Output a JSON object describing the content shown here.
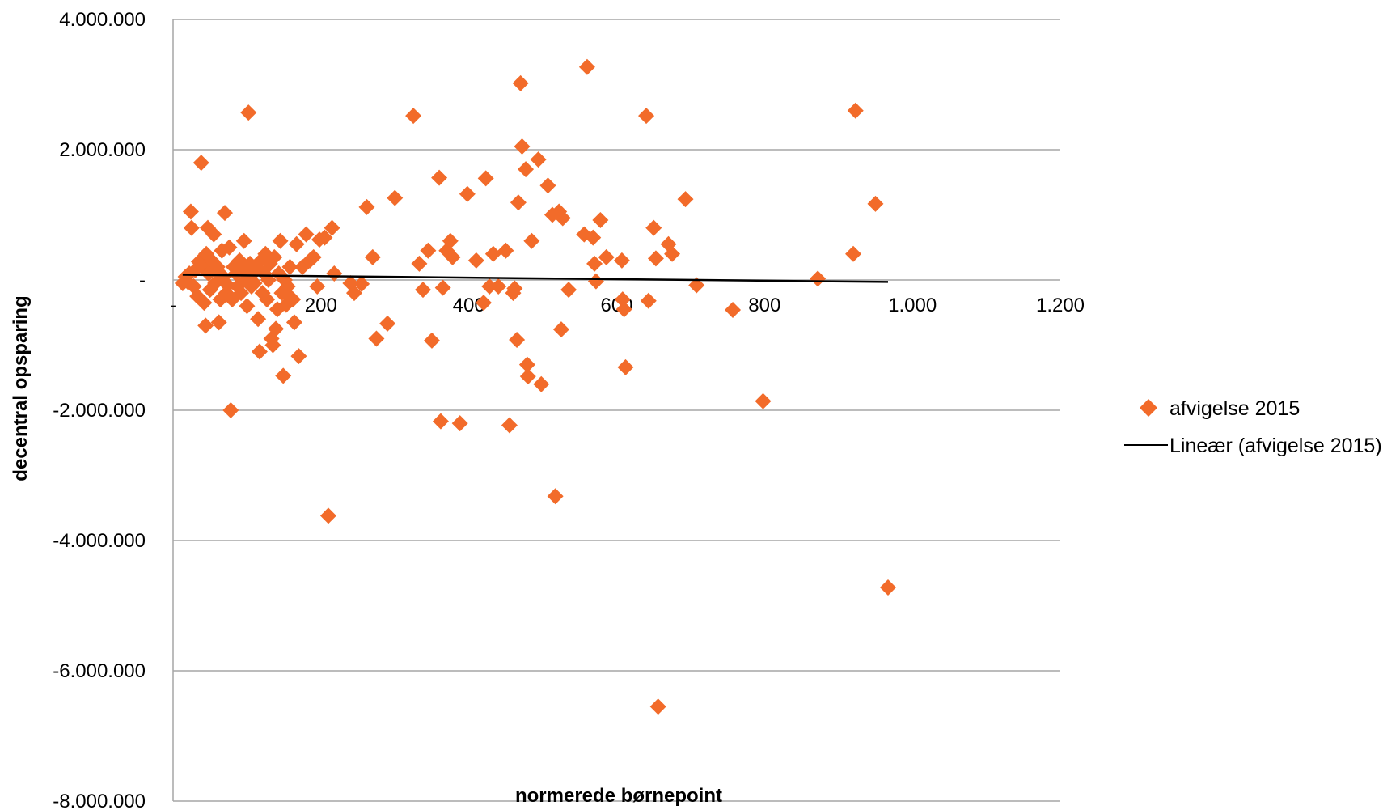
{
  "chart_data": {
    "type": "scatter",
    "xlabel": "normerede børnepoint",
    "ylabel": "decentral opsparing",
    "xlim": [
      0,
      1200
    ],
    "ylim": [
      -8000000,
      4000000
    ],
    "x_ticks": [
      0,
      200,
      400,
      600,
      800,
      1000,
      1200
    ],
    "x_tick_labels": [
      "-",
      "200",
      "400",
      "600",
      "800",
      "1.000",
      "1.200"
    ],
    "y_ticks": [
      4000000,
      2000000,
      0,
      -2000000,
      -4000000,
      -6000000,
      -8000000
    ],
    "y_tick_labels": [
      "4.000.000",
      "2.000.000",
      "-",
      "-2.000.000",
      "-4.000.000",
      "-6.000.000",
      "-8.000.000"
    ],
    "grid": "horizontal",
    "legend_position": "right",
    "colors": {
      "series": "#f26b2a",
      "trend": "#000000",
      "grid": "#a6a6a6"
    },
    "series": [
      {
        "name": "afvigelse 2015",
        "marker": "diamond",
        "points": [
          [
            13,
            -50000
          ],
          [
            17,
            50000
          ],
          [
            20,
            -30000
          ],
          [
            22,
            100000
          ],
          [
            24,
            1050000
          ],
          [
            25,
            800000
          ],
          [
            28,
            -100000
          ],
          [
            30,
            150000
          ],
          [
            33,
            -250000
          ],
          [
            35,
            280000
          ],
          [
            38,
            1800000
          ],
          [
            40,
            200000
          ],
          [
            42,
            -350000
          ],
          [
            44,
            -700000
          ],
          [
            45,
            400000
          ],
          [
            47,
            800000
          ],
          [
            48,
            100000
          ],
          [
            50,
            -150000
          ],
          [
            52,
            300000
          ],
          [
            55,
            700000
          ],
          [
            57,
            -50000
          ],
          [
            60,
            200000
          ],
          [
            62,
            -650000
          ],
          [
            64,
            -300000
          ],
          [
            66,
            450000
          ],
          [
            68,
            50000
          ],
          [
            70,
            1030000
          ],
          [
            72,
            -200000
          ],
          [
            74,
            -80000
          ],
          [
            76,
            500000
          ],
          [
            78,
            -2000000
          ],
          [
            80,
            -300000
          ],
          [
            82,
            200000
          ],
          [
            85,
            100000
          ],
          [
            87,
            -100000
          ],
          [
            90,
            300000
          ],
          [
            92,
            -200000
          ],
          [
            94,
            150000
          ],
          [
            96,
            600000
          ],
          [
            98,
            0
          ],
          [
            100,
            -400000
          ],
          [
            102,
            2570000
          ],
          [
            104,
            250000
          ],
          [
            106,
            -100000
          ],
          [
            108,
            100000
          ],
          [
            110,
            -50000
          ],
          [
            112,
            200000
          ],
          [
            115,
            -600000
          ],
          [
            117,
            -1100000
          ],
          [
            119,
            300000
          ],
          [
            121,
            -200000
          ],
          [
            123,
            100000
          ],
          [
            125,
            400000
          ],
          [
            127,
            -300000
          ],
          [
            129,
            0
          ],
          [
            131,
            250000
          ],
          [
            133,
            -900000
          ],
          [
            135,
            -1000000
          ],
          [
            137,
            350000
          ],
          [
            139,
            -750000
          ],
          [
            141,
            -450000
          ],
          [
            143,
            100000
          ],
          [
            145,
            600000
          ],
          [
            147,
            -200000
          ],
          [
            149,
            -1470000
          ],
          [
            151,
            0
          ],
          [
            153,
            -380000
          ],
          [
            155,
            -100000
          ],
          [
            158,
            200000
          ],
          [
            160,
            -280000
          ],
          [
            162,
            -300000
          ],
          [
            164,
            -650000
          ],
          [
            167,
            550000
          ],
          [
            170,
            -1170000
          ],
          [
            175,
            200000
          ],
          [
            180,
            700000
          ],
          [
            185,
            300000
          ],
          [
            190,
            350000
          ],
          [
            195,
            -100000
          ],
          [
            198,
            620000
          ],
          [
            205,
            650000
          ],
          [
            210,
            -3620000
          ],
          [
            215,
            800000
          ],
          [
            218,
            100000
          ],
          [
            240,
            -50000
          ],
          [
            245,
            -200000
          ],
          [
            255,
            -60000
          ],
          [
            262,
            1120000
          ],
          [
            270,
            350000
          ],
          [
            275,
            -900000
          ],
          [
            290,
            -670000
          ],
          [
            300,
            1260000
          ],
          [
            325,
            2520000
          ],
          [
            333,
            250000
          ],
          [
            338,
            -150000
          ],
          [
            345,
            450000
          ],
          [
            350,
            -930000
          ],
          [
            360,
            1570000
          ],
          [
            362,
            -2170000
          ],
          [
            365,
            -120000
          ],
          [
            370,
            450000
          ],
          [
            375,
            600000
          ],
          [
            378,
            350000
          ],
          [
            388,
            -2200000
          ],
          [
            398,
            1320000
          ],
          [
            410,
            300000
          ],
          [
            420,
            -350000
          ],
          [
            423,
            1560000
          ],
          [
            428,
            -100000
          ],
          [
            433,
            400000
          ],
          [
            440,
            -100000
          ],
          [
            450,
            450000
          ],
          [
            455,
            -2230000
          ],
          [
            460,
            -200000
          ],
          [
            462,
            -130000
          ],
          [
            465,
            -920000
          ],
          [
            467,
            1190000
          ],
          [
            470,
            3020000
          ],
          [
            472,
            2050000
          ],
          [
            477,
            1700000
          ],
          [
            479,
            -1300000
          ],
          [
            480,
            -1480000
          ],
          [
            485,
            600000
          ],
          [
            494,
            1850000
          ],
          [
            498,
            -1600000
          ],
          [
            507,
            1450000
          ],
          [
            513,
            1000000
          ],
          [
            517,
            -3320000
          ],
          [
            522,
            1050000
          ],
          [
            525,
            -760000
          ],
          [
            527,
            950000
          ],
          [
            535,
            -150000
          ],
          [
            556,
            700000
          ],
          [
            560,
            3270000
          ],
          [
            568,
            650000
          ],
          [
            570,
            250000
          ],
          [
            572,
            -20000
          ],
          [
            578,
            920000
          ],
          [
            586,
            350000
          ],
          [
            607,
            300000
          ],
          [
            608,
            -300000
          ],
          [
            610,
            -450000
          ],
          [
            612,
            -1340000
          ],
          [
            640,
            2520000
          ],
          [
            643,
            -320000
          ],
          [
            650,
            800000
          ],
          [
            653,
            330000
          ],
          [
            656,
            -6550000
          ],
          [
            670,
            550000
          ],
          [
            675,
            400000
          ],
          [
            693,
            1240000
          ],
          [
            708,
            -80000
          ],
          [
            757,
            -460000
          ],
          [
            798,
            -1860000
          ],
          [
            872,
            20000
          ],
          [
            920,
            400000
          ],
          [
            923,
            2600000
          ],
          [
            950,
            1170000
          ],
          [
            967,
            -4720000
          ]
        ]
      },
      {
        "name": "Lineær (afvigelse 2015)",
        "type": "line",
        "points": [
          [
            13,
            80000
          ],
          [
            967,
            -30000
          ]
        ]
      }
    ]
  }
}
